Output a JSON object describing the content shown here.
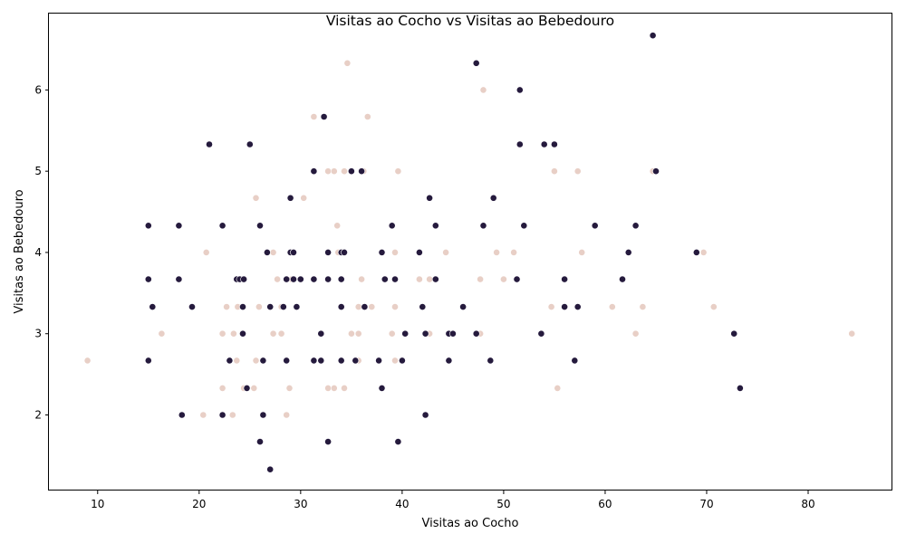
{
  "chart_data": {
    "type": "scatter",
    "title": "Visitas ao Cocho vs Visitas ao Bebedouro",
    "xlabel": "Visitas ao Cocho",
    "ylabel": "Visitas ao Bebedouro",
    "xlim": [
      5.2,
      88.3
    ],
    "ylim": [
      1.07,
      6.94
    ],
    "xticks": [
      10,
      20,
      30,
      40,
      50,
      60,
      70,
      80
    ],
    "yticks": [
      2,
      3,
      4,
      5,
      6
    ],
    "grid": false,
    "legend": "none",
    "series": [
      {
        "color": "#e8cfc6",
        "points": [
          [
            9,
            2.67
          ],
          [
            16.3,
            3
          ],
          [
            20.4,
            2
          ],
          [
            20.7,
            4
          ],
          [
            22.3,
            2.33
          ],
          [
            22.3,
            3
          ],
          [
            22.7,
            3.33
          ],
          [
            23.3,
            2
          ],
          [
            23.4,
            3
          ],
          [
            23.7,
            2.67
          ],
          [
            23.8,
            3.33
          ],
          [
            24.4,
            2.33
          ],
          [
            25.4,
            2.33
          ],
          [
            25.6,
            2.67
          ],
          [
            25.6,
            4.67
          ],
          [
            25.9,
            3.33
          ],
          [
            27.3,
            3
          ],
          [
            27.3,
            4
          ],
          [
            27.7,
            3.67
          ],
          [
            28.1,
            3
          ],
          [
            28.1,
            3.33
          ],
          [
            28.6,
            2
          ],
          [
            28.9,
            2.33
          ],
          [
            29.1,
            3.67
          ],
          [
            30.3,
            4.67
          ],
          [
            31.3,
            5.67
          ],
          [
            32.7,
            2.33
          ],
          [
            32.7,
            5
          ],
          [
            33.3,
            2.33
          ],
          [
            33.3,
            5
          ],
          [
            33.6,
            4.33
          ],
          [
            33.7,
            4
          ],
          [
            34.3,
            2.33
          ],
          [
            34.3,
            5
          ],
          [
            34.6,
            6.33
          ],
          [
            35,
            3
          ],
          [
            35.7,
            2.67
          ],
          [
            35.7,
            3
          ],
          [
            35.7,
            3.33
          ],
          [
            36,
            3.67
          ],
          [
            36.2,
            5
          ],
          [
            36.6,
            5.67
          ],
          [
            37,
            3.33
          ],
          [
            39,
            3
          ],
          [
            39.3,
            2.67
          ],
          [
            39.3,
            3.33
          ],
          [
            39.3,
            4
          ],
          [
            39.6,
            5
          ],
          [
            41.7,
            3.67
          ],
          [
            42.7,
            3
          ],
          [
            42.7,
            3.67
          ],
          [
            44.3,
            4
          ],
          [
            47.7,
            3
          ],
          [
            47.7,
            3.67
          ],
          [
            48,
            6
          ],
          [
            49.3,
            4
          ],
          [
            50,
            3.67
          ],
          [
            51,
            4
          ],
          [
            54.7,
            3.33
          ],
          [
            55,
            5
          ],
          [
            55.3,
            2.33
          ],
          [
            57.3,
            5
          ],
          [
            57.7,
            4
          ],
          [
            60.7,
            3.33
          ],
          [
            63,
            3
          ],
          [
            63.7,
            3.33
          ],
          [
            64.7,
            5
          ],
          [
            69.7,
            4
          ],
          [
            70.7,
            3.33
          ],
          [
            84.3,
            3
          ]
        ]
      },
      {
        "color": "#251a3d",
        "points": [
          [
            15,
            2.67
          ],
          [
            15,
            3.67
          ],
          [
            15,
            4.33
          ],
          [
            15.4,
            3.33
          ],
          [
            18,
            3.67
          ],
          [
            18,
            4.33
          ],
          [
            18.3,
            2
          ],
          [
            19.3,
            3.33
          ],
          [
            21,
            5.33
          ],
          [
            22.3,
            2
          ],
          [
            22.3,
            4.33
          ],
          [
            23,
            2.67
          ],
          [
            23.7,
            3.67
          ],
          [
            24,
            3.67
          ],
          [
            24.3,
            3
          ],
          [
            24.3,
            3.33
          ],
          [
            24.4,
            3.67
          ],
          [
            24.7,
            2.33
          ],
          [
            25,
            5.33
          ],
          [
            26,
            1.67
          ],
          [
            26,
            4.33
          ],
          [
            26.3,
            2
          ],
          [
            26.3,
            2.67
          ],
          [
            26.7,
            4
          ],
          [
            27,
            1.33
          ],
          [
            27,
            3.33
          ],
          [
            28.3,
            3.33
          ],
          [
            28.6,
            2.67
          ],
          [
            28.6,
            3.67
          ],
          [
            29,
            4
          ],
          [
            29,
            4.67
          ],
          [
            29.3,
            3.67
          ],
          [
            29.3,
            4
          ],
          [
            29.6,
            3.33
          ],
          [
            30,
            3.67
          ],
          [
            31.3,
            2.67
          ],
          [
            31.3,
            3.67
          ],
          [
            31.3,
            5
          ],
          [
            32,
            2.67
          ],
          [
            32,
            3
          ],
          [
            32.3,
            5.67
          ],
          [
            32.7,
            1.67
          ],
          [
            32.7,
            3.67
          ],
          [
            32.7,
            4
          ],
          [
            34,
            2.67
          ],
          [
            34,
            3.33
          ],
          [
            34,
            3.67
          ],
          [
            34,
            4
          ],
          [
            34.3,
            4
          ],
          [
            35,
            5
          ],
          [
            35.4,
            2.67
          ],
          [
            36,
            5
          ],
          [
            36.3,
            3.33
          ],
          [
            37.7,
            2.67
          ],
          [
            38,
            2.33
          ],
          [
            38,
            4
          ],
          [
            38.3,
            3.67
          ],
          [
            39,
            4.33
          ],
          [
            39.3,
            3.67
          ],
          [
            39.6,
            1.67
          ],
          [
            40,
            2.67
          ],
          [
            40.3,
            3
          ],
          [
            41.7,
            4
          ],
          [
            42,
            3.33
          ],
          [
            42.3,
            2
          ],
          [
            42.3,
            3
          ],
          [
            42.7,
            4.67
          ],
          [
            43.3,
            3.67
          ],
          [
            43.3,
            4.33
          ],
          [
            44.6,
            2.67
          ],
          [
            44.6,
            3
          ],
          [
            45,
            3
          ],
          [
            46,
            3.33
          ],
          [
            47.3,
            3
          ],
          [
            47.3,
            6.33
          ],
          [
            48,
            4.33
          ],
          [
            48.7,
            2.67
          ],
          [
            49,
            4.67
          ],
          [
            51.3,
            3.67
          ],
          [
            51.6,
            5.33
          ],
          [
            51.6,
            6
          ],
          [
            52,
            4.33
          ],
          [
            53.7,
            3
          ],
          [
            54,
            5.33
          ],
          [
            55,
            5.33
          ],
          [
            56,
            3.33
          ],
          [
            56,
            3.67
          ],
          [
            57,
            2.67
          ],
          [
            57.3,
            3.33
          ],
          [
            59,
            4.33
          ],
          [
            61.7,
            3.67
          ],
          [
            62.3,
            4
          ],
          [
            63,
            4.33
          ],
          [
            64.7,
            6.67
          ],
          [
            65,
            5
          ],
          [
            69,
            4
          ],
          [
            72.7,
            3
          ],
          [
            73.3,
            2.33
          ]
        ]
      }
    ]
  }
}
